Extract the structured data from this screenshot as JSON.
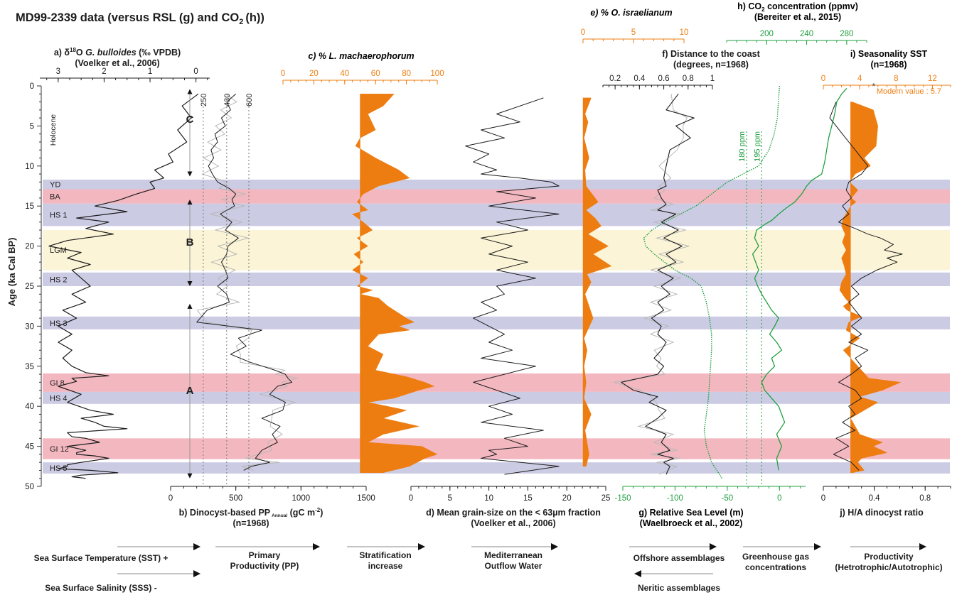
{
  "colors": {
    "orange": "#ee7d11",
    "green": "#21a040",
    "purple": "#cccbe4",
    "pink": "#f3b7c0",
    "yellow": "#fbf4d6",
    "black": "#1c1c1c",
    "grey": "#b8b8b8"
  },
  "title": {
    "main": "MD99-2339 data (versus RSL (g) and CO",
    "sub": "2",
    "tail": "(h))"
  },
  "age_axis": {
    "label": "Age (ka Cal BP)",
    "range": [
      0,
      50
    ],
    "ticks": [
      "0",
      "5",
      "10",
      "15",
      "20",
      "25",
      "30",
      "35",
      "40",
      "45",
      "50"
    ]
  },
  "periods": [
    {
      "label": "YD",
      "from": 11.7,
      "to": 12.9,
      "kind": "stadial"
    },
    {
      "label": "BA",
      "from": 12.9,
      "to": 14.7,
      "kind": "interstadial"
    },
    {
      "label": "HS 1",
      "from": 14.7,
      "to": 17.5,
      "kind": "stadial"
    },
    {
      "label": "LGM",
      "from": 18.0,
      "to": 23.0,
      "kind": "lgm"
    },
    {
      "label": "HS 2",
      "from": 23.3,
      "to": 25.0,
      "kind": "stadial"
    },
    {
      "label": "HS 3",
      "from": 28.8,
      "to": 30.4,
      "kind": "stadial"
    },
    {
      "label": "GI 8",
      "from": 35.9,
      "to": 38.2,
      "kind": "interstadial"
    },
    {
      "label": "HS 4",
      "from": 38.2,
      "to": 39.7,
      "kind": "stadial"
    },
    {
      "label": "GI 12",
      "from": 44.0,
      "to": 46.6,
      "kind": "interstadial"
    },
    {
      "label": "HS 5",
      "from": 47.0,
      "to": 48.4,
      "kind": "stadial"
    }
  ],
  "holocene_label": "Holocene",
  "phases": [
    {
      "label": "C",
      "from": 0.4,
      "to": 11.3
    },
    {
      "label": "B",
      "from": 14.2,
      "to": 25.0
    },
    {
      "label": "A",
      "from": 27.2,
      "to": 49.0
    }
  ],
  "chart_data": [
    {
      "id": "a",
      "type": "line",
      "title_prefix": "a) ",
      "title_symbol": "δ",
      "title_sup": "18",
      "title_o": "O ",
      "title_italic": "G. bulloides",
      "title_rest": " (‰ VPDB)",
      "source": "(Voelker et al., 2006)",
      "xlim": [
        3.4,
        -0.3
      ],
      "ticks": [
        "3",
        "2",
        "1",
        "0"
      ],
      "x": [
        -0.05,
        0.3,
        0.1,
        0.4,
        0.2,
        0.6,
        0.5,
        0.9,
        0.7,
        1.0,
        0.9,
        1.3,
        1.7,
        2.2,
        1.5,
        2.6,
        1.9,
        2.4,
        1.8,
        2.8,
        3.2,
        2.5,
        2.8,
        2.3,
        2.7,
        2.5,
        2.3,
        2.7,
        2.4,
        2.9,
        2.6,
        3.0,
        2.7,
        3.0,
        2.7,
        2.9,
        2.7,
        2.4,
        2.7,
        3.0,
        2.5,
        2.8,
        2.3,
        1.8,
        2.5,
        2.2,
        1.5,
        2.8,
        2.4,
        2.1,
        2.8,
        2.4,
        2.6,
        1.9,
        2.5,
        2.8,
        2.3,
        1.7,
        2.5,
        2.4,
        1.9,
        2.6,
        2.0,
        2.7,
        2.6,
        2.2,
        2.8,
        3.0,
        2.7
      ],
      "y": [
        1.0,
        2.5,
        4.0,
        5.5,
        7.0,
        8.5,
        9.5,
        10.5,
        11.5,
        12.0,
        12.8,
        13.5,
        14.3,
        15.0,
        15.7,
        16.5,
        17.0,
        17.8,
        18.5,
        19.3,
        20.0,
        20.8,
        21.5,
        22.3,
        23.0,
        24.0,
        25.0,
        26.0,
        27.0,
        28.0,
        29.0,
        30.0,
        31.0,
        32.0,
        33.0,
        34.0,
        35.0,
        35.8,
        36.5,
        37.5,
        38.5,
        39.5,
        40.5,
        41.0,
        41.5,
        42.0,
        42.8,
        43.3,
        44.0,
        44.5,
        45.0,
        45.5,
        46.0,
        46.5,
        47.0,
        47.5,
        48.0,
        48.3,
        48.6,
        49.0,
        36.2,
        36.9,
        42.5,
        43.8,
        45.8,
        46.2,
        47.3,
        47.8,
        48.8
      ]
    },
    {
      "id": "b",
      "type": "line",
      "title": "b) Dinocyst-based PP",
      "title_sub": "Annual",
      "title_unit": " (gC m",
      "title_sup": "-2",
      "title_end": ")",
      "n_label": "(n=1968)",
      "xlim": [
        0,
        1500
      ],
      "ticks": [
        "0",
        "500",
        "1000",
        "1500"
      ],
      "ref_labels": [
        "250",
        "430",
        "600"
      ],
      "ref_values": [
        250,
        430,
        600
      ],
      "x": [
        500,
        430,
        460,
        390,
        420,
        340,
        360,
        310,
        330,
        290,
        320,
        360,
        450,
        500,
        470,
        490,
        380,
        470,
        420,
        520,
        440,
        430,
        390,
        420,
        440,
        360,
        430,
        450,
        280,
        200,
        700,
        520,
        580,
        460,
        610,
        800,
        880,
        900,
        930,
        820,
        760,
        880,
        860,
        700,
        840,
        780,
        820,
        700,
        650,
        760,
        620,
        560
      ],
      "y": [
        1.0,
        2.0,
        3.0,
        4.0,
        5.0,
        6.0,
        7.0,
        8.0,
        9.0,
        10.0,
        11.0,
        12.0,
        12.8,
        13.5,
        14.2,
        15.0,
        16.0,
        17.0,
        18.0,
        19.0,
        20.0,
        21.0,
        22.0,
        23.0,
        24.0,
        25.0,
        26.0,
        27.0,
        28.0,
        29.5,
        30.5,
        31.5,
        32.5,
        33.5,
        34.5,
        35.5,
        36.0,
        36.5,
        37.0,
        37.5,
        38.5,
        39.5,
        40.5,
        41.5,
        42.5,
        43.5,
        44.5,
        45.5,
        46.5,
        47.0,
        47.5,
        48.0
      ]
    },
    {
      "id": "c",
      "type": "area",
      "title": "c) % L. machaerophorum",
      "xlim": [
        0,
        100
      ],
      "ticks": [
        "0",
        "20",
        "40",
        "60",
        "80",
        "100"
      ],
      "baseline": 50,
      "x": [
        72,
        65,
        55,
        60,
        50,
        47,
        60,
        75,
        82,
        62,
        52,
        48,
        55,
        45,
        52,
        58,
        48,
        55,
        46,
        52,
        45,
        55,
        48,
        58,
        50,
        62,
        68,
        72,
        80,
        85,
        75,
        82,
        62,
        55,
        65,
        60,
        80,
        92,
        98,
        88,
        72,
        55,
        80,
        65,
        88,
        65,
        55,
        90,
        95,
        100,
        92,
        82,
        65
      ],
      "y": [
        1.0,
        2.5,
        3.5,
        5.5,
        6.5,
        7.5,
        9.0,
        10.5,
        11.5,
        12.5,
        13.5,
        14.5,
        15.5,
        16.0,
        17.0,
        18.0,
        19.0,
        20.0,
        21.0,
        22.0,
        23.0,
        24.0,
        25.0,
        25.5,
        26.0,
        26.5,
        27.5,
        28.0,
        29.0,
        29.5,
        30.0,
        30.5,
        31.0,
        32.5,
        33.5,
        35.5,
        36.3,
        37.0,
        37.5,
        38.0,
        39.0,
        39.5,
        40.5,
        41.5,
        42.5,
        43.5,
        44.5,
        45.0,
        45.5,
        46.0,
        46.5,
        47.5,
        48.3
      ]
    },
    {
      "id": "d",
      "type": "line",
      "title": "d) Mean grain-size on the < 63µm fraction",
      "source": "(Voelker et al., 2006)",
      "xlim": [
        0,
        25
      ],
      "ticks": [
        "0",
        "5",
        "10",
        "15",
        "20",
        "25"
      ],
      "x": [
        17,
        11,
        14,
        9,
        12,
        7,
        10,
        8,
        11,
        9,
        14,
        18,
        19,
        11,
        16,
        10,
        19,
        11,
        15,
        9,
        13,
        10,
        15,
        11,
        16,
        11,
        12,
        9,
        11,
        8,
        10,
        12,
        10,
        13,
        9,
        16,
        12,
        8,
        11,
        14,
        10,
        13,
        9,
        17,
        12,
        15,
        10,
        11,
        9,
        19,
        12
      ],
      "y": [
        1.5,
        3.5,
        4.5,
        5.5,
        6.5,
        7.5,
        8.5,
        9.5,
        10.5,
        11.0,
        11.5,
        12.0,
        12.5,
        13.2,
        14.0,
        15.0,
        16.0,
        17.0,
        18.0,
        19.0,
        20.0,
        21.0,
        22.0,
        23.0,
        24.0,
        25.0,
        26.0,
        27.0,
        28.0,
        29.0,
        30.0,
        31.0,
        32.0,
        33.0,
        34.0,
        35.0,
        36.0,
        37.0,
        38.0,
        39.0,
        40.0,
        41.0,
        42.0,
        43.0,
        44.0,
        45.0,
        45.5,
        46.0,
        46.5,
        47.5,
        48.5
      ]
    },
    {
      "id": "e",
      "type": "area",
      "title": "e) % O. israelianum",
      "xlim": [
        0,
        10
      ],
      "ticks": [
        "0",
        "5",
        "10"
      ],
      "x": [
        0.8,
        0.2,
        0.5,
        0.1,
        0.6,
        0.2,
        0.3,
        0.9,
        1.5,
        0.3,
        1.2,
        1.8,
        0.5,
        2.5,
        1.0,
        2.8,
        0.4,
        0.8,
        0.2,
        1.0,
        0.1,
        0.4,
        0.1,
        0.3,
        0.1,
        0.8,
        0.2,
        0.6,
        0.3
      ],
      "y": [
        1.5,
        3.5,
        4.5,
        6.5,
        9.0,
        10.5,
        12.5,
        13.5,
        14.5,
        15.5,
        16.5,
        17.5,
        18.5,
        20.0,
        21.0,
        22.5,
        23.5,
        24.5,
        26.0,
        29.0,
        31.5,
        33.0,
        35.0,
        37.0,
        39.0,
        41.0,
        43.0,
        46.0,
        47.5
      ]
    },
    {
      "id": "f",
      "type": "line",
      "title": "f) Distance to the coast",
      "subtitle": "(degrees, n=1968)",
      "xlim": [
        0.1,
        1.0
      ],
      "ticks": [
        "0.2",
        "0.4",
        "0.6",
        "0.8",
        "1"
      ],
      "x": [
        0.72,
        0.62,
        0.85,
        0.7,
        0.82,
        0.65,
        0.62,
        0.6,
        0.62,
        0.55,
        0.58,
        0.62,
        0.55,
        0.7,
        0.58,
        0.72,
        0.6,
        0.75,
        0.62,
        0.7,
        0.55,
        0.68,
        0.58,
        0.65,
        0.55,
        0.6,
        0.5,
        0.58,
        0.55,
        0.62,
        0.58,
        0.52,
        0.6,
        0.55,
        0.25,
        0.35,
        0.55,
        0.48,
        0.62,
        0.55,
        0.45,
        0.62,
        0.58,
        0.65,
        0.55,
        0.68,
        0.6,
        0.65,
        0.62
      ],
      "y": [
        1.0,
        3.0,
        4.0,
        5.0,
        6.5,
        8.0,
        10.0,
        11.5,
        12.5,
        13.0,
        14.0,
        14.8,
        15.5,
        16.0,
        17.0,
        18.0,
        19.0,
        20.0,
        21.0,
        22.0,
        23.0,
        24.0,
        25.0,
        26.0,
        27.0,
        28.0,
        29.0,
        30.0,
        31.0,
        32.0,
        33.0,
        34.0,
        35.0,
        36.0,
        37.0,
        38.0,
        38.8,
        39.5,
        40.5,
        41.5,
        42.5,
        43.5,
        44.5,
        45.5,
        46.0,
        46.5,
        47.0,
        47.5,
        48.5
      ]
    },
    {
      "id": "g",
      "type": "line",
      "title": "g) Relative Sea Level (m)",
      "source": "(Waelbroeck et al., 2002)",
      "xlim": [
        -150,
        25
      ],
      "ticks": [
        "-150",
        "-100",
        "-50",
        "0"
      ],
      "x": [
        0,
        -2,
        -5,
        -10,
        -20,
        -35,
        -50,
        -60,
        -70,
        -80,
        -95,
        -110,
        -122,
        -130,
        -128,
        -120,
        -110,
        -100,
        -85,
        -75,
        -70,
        -67,
        -65,
        -65,
        -66,
        -67,
        -68,
        -70,
        -72,
        -70,
        -65,
        -60,
        -55
      ],
      "y": [
        0.0,
        4.0,
        6.0,
        8.0,
        10.0,
        11.0,
        12.0,
        13.0,
        14.0,
        15.0,
        16.0,
        17.0,
        18.0,
        19.0,
        20.0,
        21.0,
        22.0,
        23.0,
        24.0,
        25.0,
        27.0,
        29.0,
        31.0,
        33.0,
        35.0,
        37.0,
        39.0,
        41.0,
        43.0,
        45.0,
        47.0,
        48.0,
        49.0
      ]
    },
    {
      "id": "h",
      "type": "line",
      "title": "h) CO",
      "title_sub": "2",
      "title_rest": " concentration (ppmv)",
      "source": "(Bereiter et al., 2015)",
      "xlim": [
        160,
        300
      ],
      "ticks": [
        "200",
        "240",
        "280"
      ],
      "ref_labels": [
        "180 ppm",
        "195 ppm"
      ],
      "ref_values": [
        180,
        195
      ],
      "x": [
        280,
        275,
        270,
        268,
        265,
        262,
        260,
        258,
        255,
        245,
        240,
        235,
        228,
        220,
        212,
        205,
        198,
        190,
        188,
        192,
        186,
        189,
        192,
        188,
        191,
        195,
        200,
        205,
        212,
        208,
        203,
        210,
        215,
        205,
        208,
        200,
        195,
        198,
        205,
        212,
        215,
        218,
        210,
        215,
        210,
        212
      ],
      "y": [
        0.3,
        1.0,
        2.0,
        3.5,
        5.0,
        6.5,
        8.0,
        9.5,
        11.0,
        11.8,
        12.5,
        13.5,
        14.5,
        15.2,
        16.0,
        16.8,
        17.3,
        18.0,
        19.0,
        20.0,
        21.0,
        22.0,
        23.0,
        24.0,
        25.0,
        26.0,
        27.0,
        28.0,
        29.0,
        30.0,
        31.0,
        32.0,
        33.0,
        34.0,
        35.0,
        36.0,
        37.0,
        38.0,
        39.0,
        40.0,
        41.0,
        42.0,
        43.5,
        45.0,
        46.5,
        48.0
      ]
    },
    {
      "id": "i",
      "type": "area",
      "title": "i) Seasonality SST",
      "subtitle": "(n=1968)",
      "xlim": [
        0,
        14
      ],
      "ticks": [
        "0",
        "4",
        "8",
        "12"
      ],
      "baseline": 3,
      "modern_label": "Modern value : 5.7",
      "modern_value": 5.7,
      "x": [
        3.2,
        5.5,
        6.0,
        5.8,
        4.5,
        5.2,
        3.5,
        2.9,
        3.8,
        3.1,
        3.6,
        3.0,
        2.6,
        2.2,
        2.0,
        2.4,
        2.1,
        2.5,
        2.0,
        2.3,
        2.5,
        2.0,
        1.8,
        2.4,
        2.8,
        2.2,
        2.6,
        4.2,
        2.8,
        2.5,
        4.0,
        2.2,
        8.5,
        5.0,
        6.5,
        4.0,
        6.0,
        4.5,
        3.0,
        3.5,
        4.0,
        6.5,
        5.5,
        7.0,
        4.2,
        3.8,
        4.5,
        3.2
      ],
      "y": [
        2.0,
        3.0,
        5.0,
        7.5,
        9.0,
        10.0,
        11.0,
        12.0,
        13.0,
        14.0,
        14.5,
        15.0,
        15.8,
        16.5,
        17.5,
        18.5,
        19.5,
        20.5,
        21.5,
        22.5,
        23.5,
        24.5,
        25.5,
        26.5,
        27.0,
        27.5,
        28.0,
        28.8,
        29.5,
        30.5,
        31.5,
        33.0,
        37.0,
        36.5,
        38.0,
        38.8,
        39.5,
        40.5,
        41.5,
        42.5,
        43.5,
        44.5,
        45.0,
        45.8,
        46.5,
        47.0,
        48.0,
        48.3
      ]
    },
    {
      "id": "j",
      "type": "line",
      "title": "j) H/A dinocyst ratio",
      "xlim": [
        0,
        1.0
      ],
      "ticks": [
        "0",
        "0.4",
        "0.8"
      ],
      "x": [
        0.1,
        0.05,
        0.15,
        0.25,
        0.35,
        0.3,
        0.2,
        0.18,
        0.22,
        0.15,
        0.2,
        0.12,
        0.25,
        0.35,
        0.45,
        0.55,
        0.48,
        0.62,
        0.5,
        0.58,
        0.42,
        0.3,
        0.22,
        0.28,
        0.2,
        0.25,
        0.3,
        0.22,
        0.3,
        0.2,
        0.35,
        0.25,
        0.3,
        0.22,
        0.12,
        0.25,
        0.3,
        0.2,
        0.25,
        0.15,
        0.25,
        0.1,
        0.2,
        0.08,
        0.22,
        0.28
      ],
      "y": [
        2.0,
        4.0,
        6.0,
        8.0,
        10.0,
        11.0,
        12.0,
        13.0,
        14.0,
        15.0,
        16.0,
        17.0,
        17.8,
        18.5,
        19.0,
        19.8,
        20.5,
        21.0,
        21.5,
        22.0,
        23.0,
        24.0,
        25.0,
        26.0,
        27.0,
        28.0,
        29.0,
        30.0,
        31.0,
        32.0,
        33.0,
        34.0,
        35.0,
        36.0,
        37.0,
        38.0,
        39.0,
        40.0,
        41.0,
        42.0,
        43.0,
        44.0,
        45.0,
        46.0,
        47.0,
        48.0
      ]
    }
  ],
  "interpretation": [
    {
      "label": "Sea Surface Temperature (SST) +",
      "arrow": "right"
    },
    {
      "label": "Sea Surface Salinity (SSS) -",
      "arrow": "right"
    },
    {
      "label1": "Primary",
      "label2": "Productivity (PP)",
      "arrow": "right"
    },
    {
      "label1": "Stratification",
      "label2": "increase",
      "arrow": "right"
    },
    {
      "label1": "Mediterranean",
      "label2": "Outflow Water",
      "arrow": "right"
    },
    {
      "label": "Offshore assemblages",
      "arrow": "right"
    },
    {
      "label": "Neritic assemblages",
      "arrow": "left"
    },
    {
      "label1": "Greenhouse gas",
      "label2": "concentrations",
      "arrow": "right"
    },
    {
      "label1": "Productivity",
      "label2": "(Hetrotrophic/Autotrophic)",
      "arrow": "right"
    }
  ]
}
